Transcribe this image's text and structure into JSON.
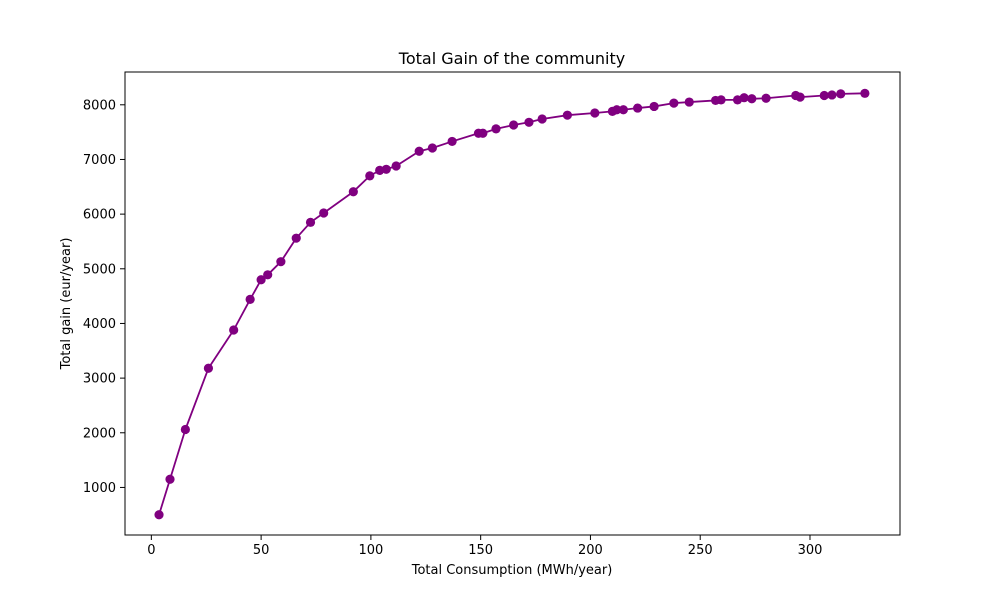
{
  "chart_data": {
    "type": "line",
    "title": "Total Gain of the community",
    "xlabel": "Total Consumption (MWh/year)",
    "ylabel": "Total gain (eur/year)",
    "xlim": [
      -12,
      341
    ],
    "ylim": [
      130,
      8600
    ],
    "xticks": [
      0,
      50,
      100,
      150,
      200,
      250,
      300
    ],
    "yticks": [
      1000,
      2000,
      3000,
      4000,
      5000,
      6000,
      7000,
      8000
    ],
    "grid": false,
    "series": [
      {
        "name": "Total gain",
        "color": "#800080",
        "marker": "circle",
        "x": [
          3.5,
          8.5,
          15.5,
          26,
          37.5,
          45,
          50,
          53,
          59,
          66,
          72.5,
          78.5,
          92,
          99.5,
          104,
          107,
          111.5,
          122,
          128,
          137,
          149,
          151,
          157,
          165,
          172,
          178,
          189.5,
          202,
          210,
          212,
          215,
          221.5,
          229,
          238,
          245,
          257,
          259.5,
          267,
          270,
          273.5,
          280,
          293.5,
          295.5,
          306.5,
          310,
          314,
          325
        ],
        "y": [
          500,
          1150,
          2060,
          3180,
          3880,
          4440,
          4800,
          4890,
          5130,
          5560,
          5850,
          6020,
          6410,
          6700,
          6800,
          6820,
          6880,
          7150,
          7210,
          7330,
          7480,
          7480,
          7560,
          7630,
          7680,
          7740,
          7810,
          7850,
          7880,
          7910,
          7910,
          7940,
          7970,
          8030,
          8050,
          8080,
          8090,
          8090,
          8130,
          8110,
          8120,
          8170,
          8140,
          8170,
          8180,
          8200,
          8210
        ]
      }
    ]
  }
}
